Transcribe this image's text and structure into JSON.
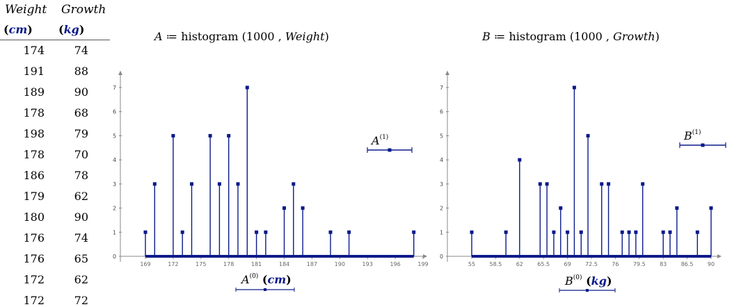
{
  "table": {
    "col1_header": "Weight",
    "col2_header": "Growth",
    "col1_unit": "cm",
    "col2_unit": "kg",
    "rows": [
      [
        "174",
        "74"
      ],
      [
        "191",
        "88"
      ],
      [
        "189",
        "90"
      ],
      [
        "178",
        "68"
      ],
      [
        "198",
        "79"
      ],
      [
        "178",
        "70"
      ],
      [
        "186",
        "78"
      ],
      [
        "179",
        "62"
      ],
      [
        "180",
        "90"
      ],
      [
        "176",
        "74"
      ],
      [
        "176",
        "65"
      ],
      [
        "172",
        "62"
      ],
      [
        "172",
        "72"
      ]
    ]
  },
  "formulas": {
    "a_var": "A",
    "a_assign": " ≔ histogram (1000 , ",
    "a_arg": "Weight",
    "b_var": "B",
    "b_assign": " ≔ histogram (1000 , ",
    "b_arg": "Growth",
    "close": ")"
  },
  "chart_data": [
    {
      "type": "bar",
      "title": "",
      "xlabel_var": "A",
      "xlabel_sup": "(0)",
      "xlabel_unit": "cm",
      "legend_var": "A",
      "legend_sup": "(1)",
      "xlim": [
        168,
        200
      ],
      "ylim": [
        0,
        7.5
      ],
      "xticks": [
        "169",
        "172",
        "175",
        "178",
        "181",
        "184",
        "187",
        "190",
        "193",
        "196",
        "199"
      ],
      "yticks": [
        "0",
        "1",
        "2",
        "3",
        "4",
        "5",
        "6",
        "7"
      ],
      "x": [
        169,
        170,
        172,
        173,
        174,
        176,
        177,
        178,
        179,
        180,
        181,
        182,
        184,
        185,
        186,
        189,
        191,
        198
      ],
      "values": [
        1,
        3,
        5,
        1,
        3,
        5,
        3,
        5,
        3,
        7,
        1,
        1,
        2,
        3,
        2,
        1,
        1,
        1
      ],
      "baseline_range": [
        169,
        198
      ],
      "color": "#0a1a8a"
    },
    {
      "type": "bar",
      "title": "",
      "xlabel_var": "B",
      "xlabel_sup": "(0)",
      "xlabel_unit": "kg",
      "legend_var": "B",
      "legend_sup": "(1)",
      "xlim": [
        55,
        91.5
      ],
      "ylim": [
        0,
        7.5
      ],
      "xticks": [
        "55",
        "58.5",
        "62",
        "65.5",
        "69",
        "72.5",
        "76",
        "79.5",
        "83",
        "86.5",
        "90"
      ],
      "yticks": [
        "0",
        "1",
        "2",
        "3",
        "4",
        "5",
        "6",
        "7"
      ],
      "x": [
        55,
        60,
        62,
        65,
        66,
        67,
        68,
        69,
        70,
        71,
        72,
        74,
        75,
        77,
        78,
        79,
        80,
        83,
        84,
        85,
        88,
        90
      ],
      "values": [
        1,
        1,
        4,
        3,
        3,
        1,
        2,
        1,
        7,
        1,
        5,
        3,
        3,
        1,
        1,
        1,
        3,
        1,
        1,
        2,
        1,
        2
      ],
      "baseline_range": [
        55,
        90
      ],
      "color": "#0a1a8a"
    }
  ]
}
